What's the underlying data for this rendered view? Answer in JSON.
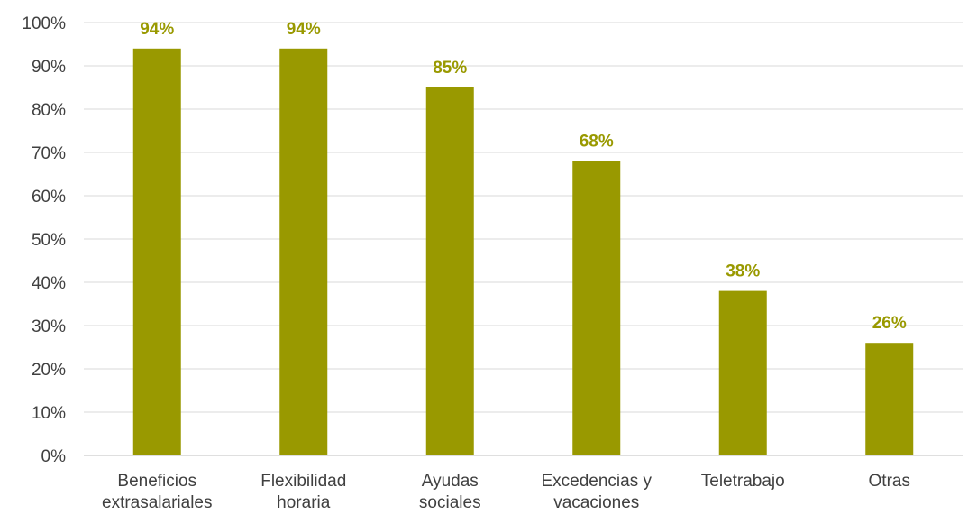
{
  "chart_data": {
    "type": "bar",
    "categories": [
      [
        "Beneficios",
        "extrasalariales"
      ],
      [
        "Flexibilidad",
        "horaria"
      ],
      [
        "Ayudas",
        "sociales"
      ],
      [
        "Excedencias y",
        "vacaciones"
      ],
      [
        "Teletrabajo"
      ],
      [
        "Otras"
      ]
    ],
    "values": [
      94,
      94,
      85,
      68,
      38,
      26
    ],
    "data_labels": [
      "94%",
      "94%",
      "85%",
      "68%",
      "38%",
      "26%"
    ],
    "ylim": [
      0,
      100
    ],
    "y_ticks": [
      0,
      10,
      20,
      30,
      40,
      50,
      60,
      70,
      80,
      90,
      100
    ],
    "y_tick_labels": [
      "0%",
      "10%",
      "20%",
      "30%",
      "40%",
      "50%",
      "60%",
      "70%",
      "80%",
      "90%",
      "100%"
    ],
    "grid": true,
    "legend": "none",
    "colors": {
      "bar": "#999900",
      "data_label": "#999900"
    }
  }
}
